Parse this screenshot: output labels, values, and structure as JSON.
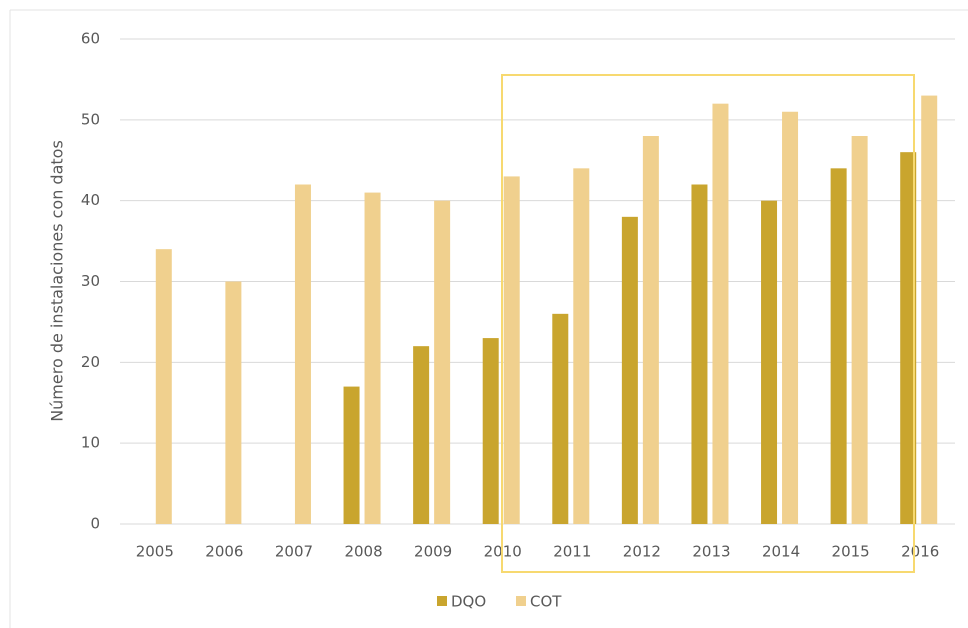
{
  "chart_data": {
    "type": "bar",
    "ylabel": "Número de instalaciones con datos",
    "categories": [
      "2005",
      "2006",
      "2007",
      "2008",
      "2009",
      "2010",
      "2011",
      "2012",
      "2013",
      "2014",
      "2015",
      "2016"
    ],
    "series": [
      {
        "name": "DQO",
        "color": "#c9a52e",
        "values": [
          null,
          null,
          null,
          17,
          22,
          23,
          26,
          38,
          42,
          40,
          44,
          46
        ]
      },
      {
        "name": "COT",
        "color": "#f0d08e",
        "values": [
          34,
          30,
          42,
          41,
          40,
          43,
          44,
          48,
          52,
          51,
          48,
          53
        ]
      }
    ],
    "ylim": [
      0,
      60
    ],
    "yticks": [
      0,
      10,
      20,
      30,
      40,
      50,
      60
    ],
    "grid": true,
    "legend": "bottom"
  }
}
